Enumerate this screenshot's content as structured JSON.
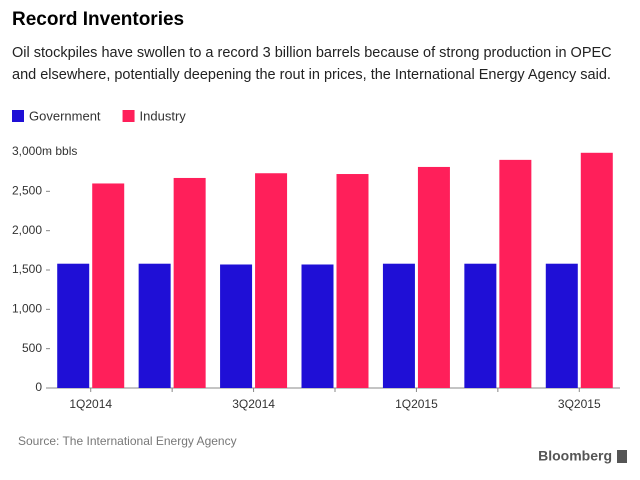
{
  "chart_data": {
    "type": "grouped_bar",
    "title": "Record Inventories",
    "subtitle": [
      "Oil stockpiles have swollen to a record 3 billion barrels because of strong production in OPEC",
      "and elsewhere, potentially deepening the rout in prices, the International Energy Agency said."
    ],
    "categories": [
      "1Q2014",
      null,
      "3Q2014",
      null,
      "1Q2015",
      null,
      "3Q2015"
    ],
    "series": [
      {
        "name": "Government",
        "color": "#1f0fd6",
        "values": [
          1580,
          1580,
          1570,
          1570,
          1580,
          1580,
          1580
        ]
      },
      {
        "name": "Industry",
        "color": "#ff1f5a",
        "values": [
          2600,
          2670,
          2730,
          2720,
          2810,
          2900,
          2990
        ]
      }
    ],
    "ylim": [
      0,
      3000
    ],
    "yticks": [
      0,
      500,
      {
        "value": 1000,
        "label": "1,000"
      },
      {
        "value": 1500,
        "label": "1,500"
      },
      {
        "value": 2000,
        "label": "2,000"
      },
      {
        "value": 2500,
        "label": "2,500"
      },
      {
        "value": 3000,
        "label": "3,000m bbls"
      }
    ],
    "grid": false,
    "source": "Source: The International Energy Agency",
    "logo": "Bloomberg"
  }
}
